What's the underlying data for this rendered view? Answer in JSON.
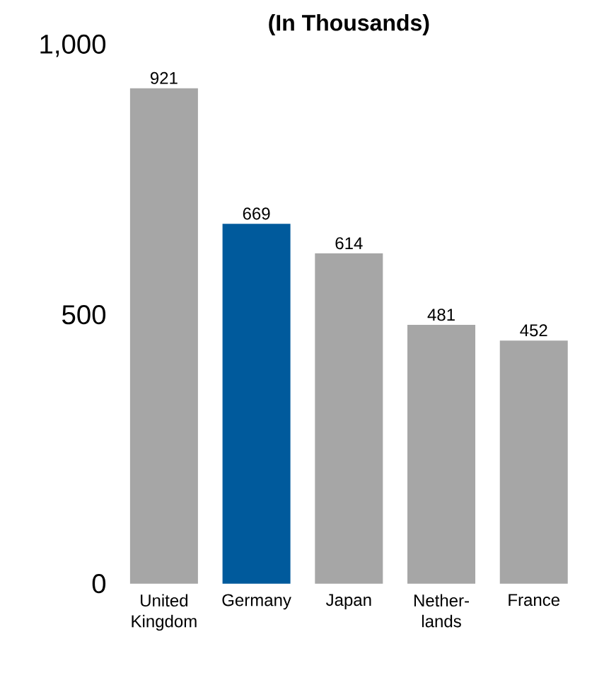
{
  "chart_data": {
    "type": "bar",
    "title": "(In Thousands)",
    "categories": [
      "United Kingdom",
      "Germany",
      "Japan",
      "Nether-lands",
      "France"
    ],
    "values": [
      921,
      669,
      614,
      481,
      452
    ],
    "colors": [
      "#a6a6a6",
      "#005a9c",
      "#a6a6a6",
      "#a6a6a6",
      "#a6a6a6"
    ],
    "ylim": [
      0,
      1000
    ],
    "yticks": [
      0,
      500,
      {
        "value": 1000,
        "label": "1,000"
      }
    ],
    "data_labels": true
  }
}
